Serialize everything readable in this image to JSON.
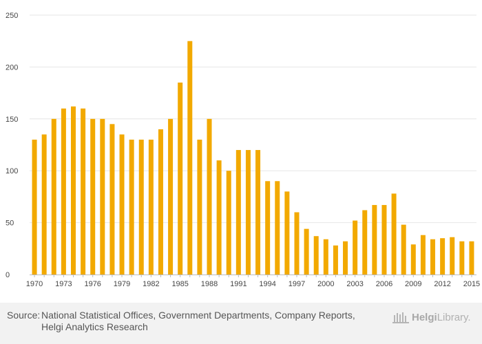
{
  "chart_data": {
    "type": "bar",
    "title": "",
    "xlabel": "",
    "ylabel": "",
    "ylim": [
      0,
      250
    ],
    "yticks": [
      0,
      50,
      100,
      150,
      200,
      250
    ],
    "grid": true,
    "bar_color": "#f2a900",
    "categories": [
      1970,
      1971,
      1972,
      1973,
      1974,
      1975,
      1976,
      1977,
      1978,
      1979,
      1980,
      1981,
      1982,
      1983,
      1984,
      1985,
      1986,
      1987,
      1988,
      1989,
      1990,
      1991,
      1992,
      1993,
      1994,
      1995,
      1996,
      1997,
      1998,
      1999,
      2000,
      2001,
      2002,
      2003,
      2004,
      2005,
      2006,
      2007,
      2008,
      2009,
      2010,
      2011,
      2012,
      2013,
      2014,
      2015
    ],
    "values": [
      130,
      135,
      150,
      160,
      162,
      160,
      150,
      150,
      145,
      135,
      130,
      130,
      130,
      140,
      150,
      185,
      225,
      130,
      150,
      110,
      100,
      120,
      120,
      120,
      90,
      90,
      80,
      60,
      44,
      37,
      34,
      28,
      32,
      52,
      62,
      67,
      67,
      78,
      48,
      29,
      38,
      34,
      35,
      36,
      32,
      32
    ],
    "xtick_labels": [
      "1970",
      "1973",
      "1976",
      "1979",
      "1982",
      "1985",
      "1988",
      "1991",
      "1994",
      "1997",
      "2000",
      "2003",
      "2006",
      "2009",
      "2012",
      "2015"
    ]
  },
  "footer": {
    "source_label": "Source:",
    "source_text": "National Statistical Offices, Government Departments, Company Reports, Helgi Analytics Research",
    "brand_bold": "Helgi",
    "brand_rest": "Library."
  },
  "colors": {
    "grid": "#e6e6e6",
    "axis": "#bbbbbb",
    "footer_bg": "#f2f2f2"
  }
}
